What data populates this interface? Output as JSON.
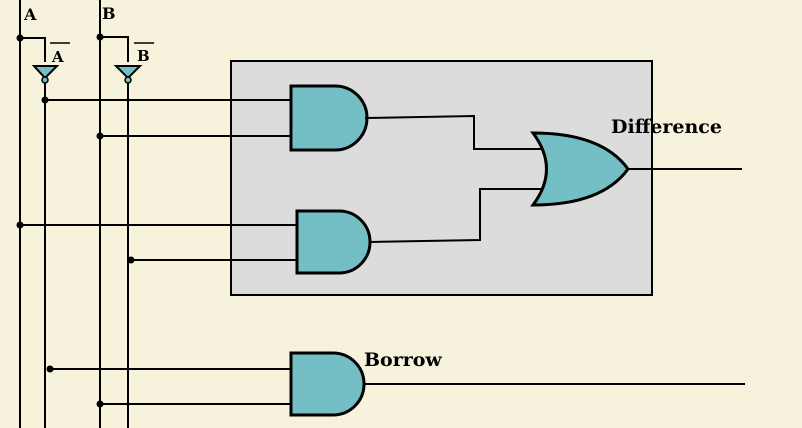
{
  "inputs": {
    "a_label": "A",
    "b_label": "B",
    "a_not_label": "A",
    "b_not_label": "B"
  },
  "outputs": {
    "difference_label": "Difference",
    "borrow_label": "Borrow"
  },
  "colors": {
    "background": "#f6f2dc",
    "gate_fill": "#74bfc6",
    "box_fill": "#dcdcdc",
    "wire": "#000000"
  },
  "icons": [
    "not-gate-icon",
    "and-gate-icon",
    "or-gate-icon"
  ]
}
